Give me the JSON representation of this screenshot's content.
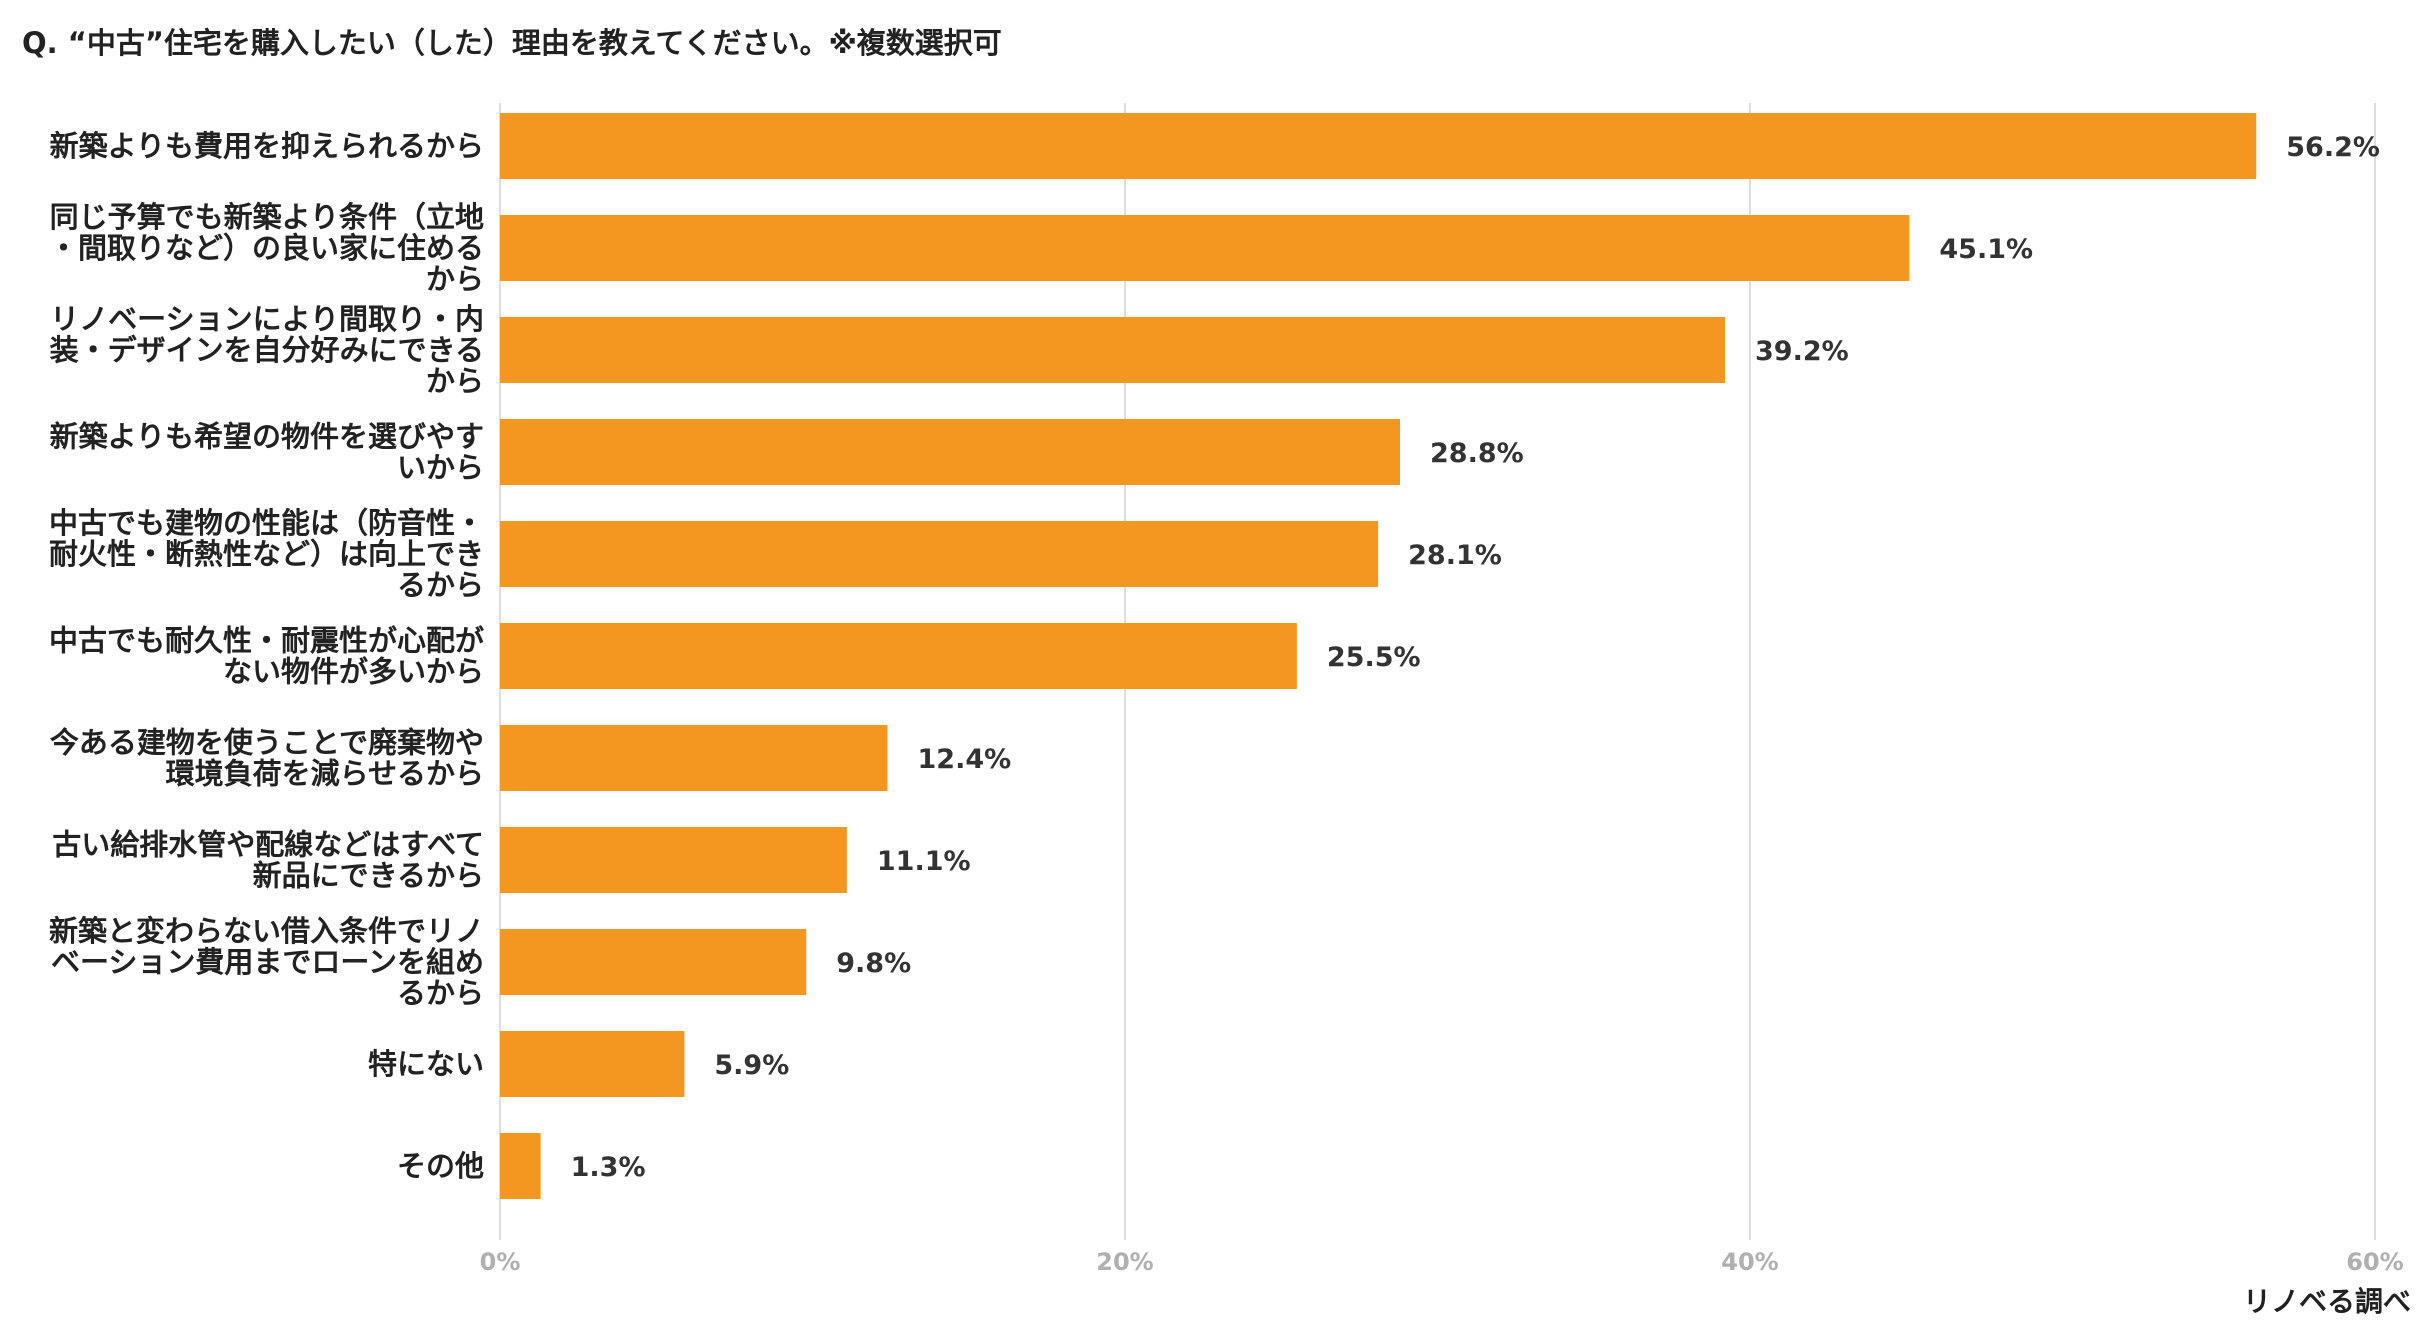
{
  "chart_data": {
    "type": "bar",
    "orientation": "horizontal",
    "title": "Q. “中古”住宅を購入したい（した）理由を教えてください。※複数選択可",
    "source": "リノベる調べ",
    "bar_color": "#F39720",
    "grid_color": "#dddddd",
    "xlim": [
      0,
      60
    ],
    "xticks": [
      0,
      20,
      40,
      60
    ],
    "tick_labels": [
      "0%",
      "20%",
      "40%",
      "60%"
    ],
    "categories": [
      [
        "新築よりも費用を抑えられるから"
      ],
      [
        "同じ予算でも新築より条件（立地",
        "・間取りなど）の良い家に住める",
        "から"
      ],
      [
        "リノベーションにより間取り・内",
        "装・デザインを自分好みにできる",
        "から"
      ],
      [
        "新築よりも希望の物件を選びやす",
        "いから"
      ],
      [
        "中古でも建物の性能は（防音性・",
        "耐火性・断熱性など）は向上でき",
        "るから"
      ],
      [
        "中古でも耐久性・耐震性が心配が",
        "ない物件が多いから"
      ],
      [
        "今ある建物を使うことで廃棄物や",
        "環境負荷を減らせるから"
      ],
      [
        "古い給排水管や配線などはすべて",
        "新品にできるから"
      ],
      [
        "新築と変わらない借入条件でリノ",
        "ベーション費用までローンを組め",
        "るから"
      ],
      [
        "特にない"
      ],
      [
        "その他"
      ]
    ],
    "values": [
      56.2,
      45.1,
      39.2,
      28.8,
      28.1,
      25.5,
      12.4,
      11.1,
      9.8,
      5.9,
      1.3
    ],
    "value_labels": [
      "56.2%",
      "45.1%",
      "39.2%",
      "28.8%",
      "28.1%",
      "25.5%",
      "12.4%",
      "11.1%",
      "9.8%",
      "5.9%",
      "1.3%"
    ]
  }
}
